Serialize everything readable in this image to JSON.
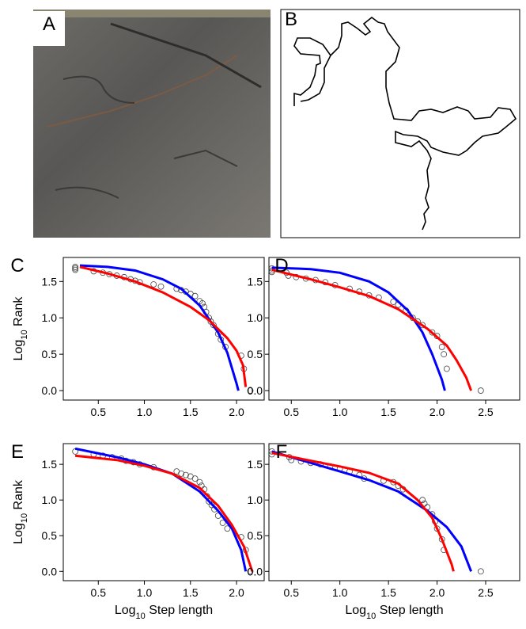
{
  "panel_labels": [
    "A",
    "B"
  ],
  "chart_data": [
    {
      "type": "scatter",
      "label": "C",
      "xlim": [
        0.12,
        2.3
      ],
      "ylim": [
        -0.13,
        1.83
      ],
      "xticks": [
        0.5,
        {
          "value": 1,
          "label": "1.0"
        },
        1.5,
        {
          "value": 2,
          "label": "2.0"
        }
      ],
      "yticks": [
        {
          "value": 0,
          "label": "0.0"
        },
        0.5,
        {
          "value": 1,
          "label": "1.0"
        },
        1.5
      ],
      "ylabel": [
        "Log",
        "10",
        " Rank"
      ],
      "x": [
        0.25,
        0.25,
        0.25,
        0.45,
        0.55,
        0.62,
        0.7,
        0.78,
        0.85,
        0.9,
        0.95,
        1.1,
        1.18,
        1.35,
        1.4,
        1.45,
        1.5,
        1.55,
        1.6,
        1.63,
        1.65,
        1.67,
        1.7,
        1.72,
        1.75,
        1.8,
        1.83,
        1.88,
        2.05,
        2.08,
        2.15
      ],
      "values": [
        1.7,
        1.68,
        1.66,
        1.64,
        1.62,
        1.6,
        1.58,
        1.56,
        1.53,
        1.51,
        1.49,
        1.46,
        1.43,
        1.4,
        1.38,
        1.36,
        1.33,
        1.3,
        1.23,
        1.2,
        1.15,
        1.08,
        1.0,
        0.95,
        0.9,
        0.78,
        0.7,
        0.6,
        0.48,
        0.3,
        0.0
      ],
      "fits": [
        {
          "color": "#0000ff",
          "x": [
            0.3,
            0.6,
            0.9,
            1.2,
            1.4,
            1.6,
            1.8,
            1.9,
            2.0,
            2.02
          ],
          "values": [
            1.72,
            1.7,
            1.65,
            1.53,
            1.4,
            1.17,
            0.8,
            0.52,
            0.1,
            0.0
          ]
        },
        {
          "color": "#ff0000",
          "x": [
            0.3,
            0.6,
            0.9,
            1.2,
            1.5,
            1.7,
            1.9,
            2.0,
            2.07,
            2.1
          ],
          "values": [
            1.7,
            1.61,
            1.5,
            1.35,
            1.15,
            0.97,
            0.72,
            0.55,
            0.35,
            0.05
          ]
        }
      ]
    },
    {
      "type": "scatter",
      "label": "D",
      "xlim": [
        0.27,
        2.85
      ],
      "ylim": [
        -0.13,
        1.83
      ],
      "xticks": [
        0.5,
        {
          "value": 1,
          "label": "1.0"
        },
        1.5,
        {
          "value": 2,
          "label": "2.0"
        },
        2.5
      ],
      "yticks": [
        {
          "value": 0,
          "label": "0.0"
        },
        0.5,
        {
          "value": 1,
          "label": "1.0"
        },
        1.5
      ],
      "x": [
        0.3,
        0.3,
        0.3,
        0.45,
        0.47,
        0.55,
        0.65,
        0.75,
        0.85,
        0.95,
        1.1,
        1.2,
        1.3,
        1.4,
        1.55,
        1.6,
        1.68,
        1.75,
        1.8,
        1.85,
        1.95,
        2.0,
        2.05,
        2.07,
        2.1,
        2.45
      ],
      "values": [
        1.68,
        1.65,
        1.63,
        1.62,
        1.58,
        1.56,
        1.54,
        1.52,
        1.49,
        1.45,
        1.4,
        1.36,
        1.31,
        1.28,
        1.22,
        1.18,
        1.1,
        1.0,
        0.95,
        0.9,
        0.8,
        0.75,
        0.6,
        0.5,
        0.3,
        0.0
      ],
      "fits": [
        {
          "color": "#0000ff",
          "x": [
            0.3,
            0.7,
            1.0,
            1.3,
            1.5,
            1.7,
            1.85,
            1.95,
            2.05,
            2.08
          ],
          "values": [
            1.69,
            1.67,
            1.62,
            1.5,
            1.35,
            1.1,
            0.8,
            0.5,
            0.15,
            0.0
          ]
        },
        {
          "color": "#ff0000",
          "x": [
            0.3,
            0.7,
            1.0,
            1.3,
            1.6,
            1.9,
            2.1,
            2.2,
            2.3,
            2.35
          ],
          "values": [
            1.66,
            1.53,
            1.42,
            1.3,
            1.12,
            0.85,
            0.62,
            0.42,
            0.18,
            0.0
          ]
        }
      ]
    },
    {
      "type": "scatter",
      "label": "E",
      "xlim": [
        0.12,
        2.3
      ],
      "ylim": [
        -0.13,
        1.79
      ],
      "xticks": [
        0.5,
        {
          "value": 1,
          "label": "1.0"
        },
        1.5,
        {
          "value": 2,
          "label": "2.0"
        }
      ],
      "yticks": [
        {
          "value": 0,
          "label": "0.0"
        },
        0.5,
        {
          "value": 1,
          "label": "1.0"
        },
        1.5
      ],
      "ylabel": [
        "Log",
        "10",
        " Rank"
      ],
      "xlabel": [
        "Log",
        "10",
        " Step length"
      ],
      "x": [
        0.25,
        0.45,
        0.55,
        0.65,
        0.75,
        0.8,
        0.88,
        0.95,
        1.1,
        1.35,
        1.4,
        1.45,
        1.5,
        1.55,
        1.6,
        1.62,
        1.65,
        1.68,
        1.7,
        1.73,
        1.76,
        1.8,
        1.85,
        1.9,
        2.05,
        2.1,
        2.15
      ],
      "values": [
        1.68,
        1.64,
        1.62,
        1.6,
        1.58,
        1.55,
        1.53,
        1.5,
        1.46,
        1.4,
        1.37,
        1.35,
        1.33,
        1.3,
        1.25,
        1.2,
        1.15,
        1.05,
        0.98,
        0.93,
        0.87,
        0.78,
        0.68,
        0.6,
        0.48,
        0.3,
        0.0
      ],
      "fits": [
        {
          "color": "#0000ff",
          "x": [
            0.25,
            0.7,
            1.0,
            1.3,
            1.6,
            1.8,
            1.95,
            2.05,
            2.1
          ],
          "values": [
            1.72,
            1.6,
            1.5,
            1.37,
            1.12,
            0.85,
            0.6,
            0.3,
            0.0
          ]
        },
        {
          "color": "#ff0000",
          "x": [
            0.25,
            0.7,
            1.0,
            1.3,
            1.6,
            1.8,
            1.95,
            2.08,
            2.17
          ],
          "values": [
            1.62,
            1.56,
            1.48,
            1.37,
            1.17,
            0.92,
            0.65,
            0.35,
            0.0
          ]
        }
      ]
    },
    {
      "type": "scatter",
      "label": "F",
      "xlim": [
        0.27,
        2.85
      ],
      "ylim": [
        -0.13,
        1.79
      ],
      "xticks": [
        0.5,
        {
          "value": 1,
          "label": "1.0"
        },
        1.5,
        {
          "value": 2,
          "label": "2.0"
        },
        2.5
      ],
      "yticks": [
        {
          "value": 0,
          "label": "0.0"
        },
        0.5,
        {
          "value": 1,
          "label": "1.0"
        },
        1.5
      ],
      "xlabel": [
        "Log",
        "10",
        " Step length"
      ],
      "x": [
        0.3,
        0.3,
        0.48,
        0.5,
        0.6,
        0.7,
        0.8,
        0.9,
        1.0,
        1.1,
        1.2,
        1.25,
        1.45,
        1.55,
        1.6,
        1.65,
        1.85,
        1.87,
        1.9,
        1.95,
        1.98,
        2.0,
        2.05,
        2.07,
        2.45
      ],
      "values": [
        1.68,
        1.64,
        1.6,
        1.56,
        1.54,
        1.52,
        1.5,
        1.47,
        1.44,
        1.4,
        1.35,
        1.3,
        1.27,
        1.25,
        1.2,
        1.15,
        1.0,
        0.95,
        0.9,
        0.8,
        0.7,
        0.6,
        0.45,
        0.3,
        0.0
      ],
      "fits": [
        {
          "color": "#0000ff",
          "x": [
            0.3,
            0.7,
            1.0,
            1.3,
            1.6,
            1.9,
            2.1,
            2.25,
            2.35
          ],
          "values": [
            1.68,
            1.52,
            1.4,
            1.28,
            1.12,
            0.85,
            0.62,
            0.35,
            0.0
          ]
        },
        {
          "color": "#ff0000",
          "x": [
            0.3,
            0.7,
            1.0,
            1.3,
            1.6,
            1.8,
            1.95,
            2.05,
            2.15,
            2.17
          ],
          "values": [
            1.66,
            1.55,
            1.47,
            1.38,
            1.23,
            1.0,
            0.75,
            0.45,
            0.1,
            0.0
          ]
        }
      ]
    }
  ]
}
